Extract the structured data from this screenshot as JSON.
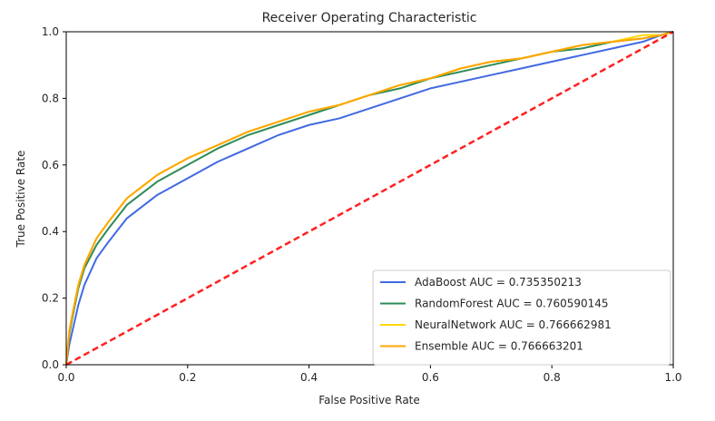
{
  "chart_data": {
    "type": "line",
    "title": "Receiver Operating Characteristic",
    "xlabel": "False Positive Rate",
    "ylabel": "True Positive Rate",
    "xlim": [
      0.0,
      1.0
    ],
    "ylim": [
      0.0,
      1.0
    ],
    "xticks": [
      "0.0",
      "0.2",
      "0.4",
      "0.6",
      "0.8",
      "1.0"
    ],
    "yticks": [
      "0.0",
      "0.2",
      "0.4",
      "0.6",
      "0.8",
      "1.0"
    ],
    "grid": false,
    "legend_position": "lower-right",
    "series": [
      {
        "name": "AdaBoost AUC = 0.735350213",
        "color": "#4169e1",
        "x": [
          0,
          0.005,
          0.01,
          0.02,
          0.03,
          0.05,
          0.07,
          0.1,
          0.15,
          0.2,
          0.25,
          0.3,
          0.35,
          0.4,
          0.45,
          0.5,
          0.55,
          0.6,
          0.65,
          0.7,
          0.75,
          0.8,
          0.85,
          0.9,
          0.95,
          0.98,
          1.0
        ],
        "y": [
          0,
          0.06,
          0.1,
          0.18,
          0.24,
          0.32,
          0.37,
          0.44,
          0.51,
          0.56,
          0.61,
          0.65,
          0.69,
          0.72,
          0.74,
          0.77,
          0.8,
          0.83,
          0.85,
          0.87,
          0.89,
          0.91,
          0.93,
          0.95,
          0.97,
          0.99,
          1.0
        ]
      },
      {
        "name": "RandomForest AUC = 0.760590145",
        "color": "#2e8b57",
        "x": [
          0,
          0.005,
          0.01,
          0.02,
          0.03,
          0.05,
          0.07,
          0.1,
          0.15,
          0.2,
          0.25,
          0.3,
          0.35,
          0.4,
          0.45,
          0.5,
          0.55,
          0.6,
          0.65,
          0.7,
          0.75,
          0.8,
          0.85,
          0.9,
          0.95,
          0.98,
          1.0
        ],
        "y": [
          0,
          0.09,
          0.14,
          0.23,
          0.29,
          0.36,
          0.41,
          0.48,
          0.55,
          0.6,
          0.65,
          0.69,
          0.72,
          0.75,
          0.78,
          0.81,
          0.83,
          0.86,
          0.88,
          0.9,
          0.92,
          0.94,
          0.95,
          0.97,
          0.98,
          0.99,
          1.0
        ]
      },
      {
        "name": "NeuralNetwork AUC = 0.766662981",
        "color": "#ffd700",
        "x": [
          0,
          0.005,
          0.01,
          0.02,
          0.03,
          0.05,
          0.07,
          0.1,
          0.15,
          0.2,
          0.25,
          0.3,
          0.35,
          0.4,
          0.45,
          0.5,
          0.55,
          0.6,
          0.65,
          0.7,
          0.75,
          0.8,
          0.85,
          0.9,
          0.95,
          0.98,
          1.0
        ],
        "y": [
          0,
          0.1,
          0.15,
          0.24,
          0.3,
          0.38,
          0.43,
          0.5,
          0.57,
          0.62,
          0.66,
          0.7,
          0.73,
          0.76,
          0.78,
          0.81,
          0.84,
          0.86,
          0.89,
          0.91,
          0.92,
          0.94,
          0.96,
          0.97,
          0.99,
          0.99,
          1.0
        ]
      },
      {
        "name": "Ensemble AUC = 0.766663201",
        "color": "#ffa500",
        "x": [
          0,
          0.005,
          0.01,
          0.02,
          0.03,
          0.05,
          0.07,
          0.1,
          0.15,
          0.2,
          0.25,
          0.3,
          0.35,
          0.4,
          0.45,
          0.5,
          0.55,
          0.6,
          0.65,
          0.7,
          0.75,
          0.8,
          0.85,
          0.9,
          0.95,
          0.98,
          1.0
        ],
        "y": [
          0,
          0.1,
          0.15,
          0.24,
          0.3,
          0.38,
          0.43,
          0.5,
          0.57,
          0.62,
          0.66,
          0.7,
          0.73,
          0.76,
          0.78,
          0.81,
          0.84,
          0.86,
          0.89,
          0.91,
          0.92,
          0.94,
          0.96,
          0.97,
          0.98,
          0.99,
          1.0
        ]
      }
    ],
    "reference_line": {
      "x": [
        0,
        1
      ],
      "y": [
        0,
        1
      ],
      "color": "#ff2020",
      "style": "dashed"
    }
  }
}
